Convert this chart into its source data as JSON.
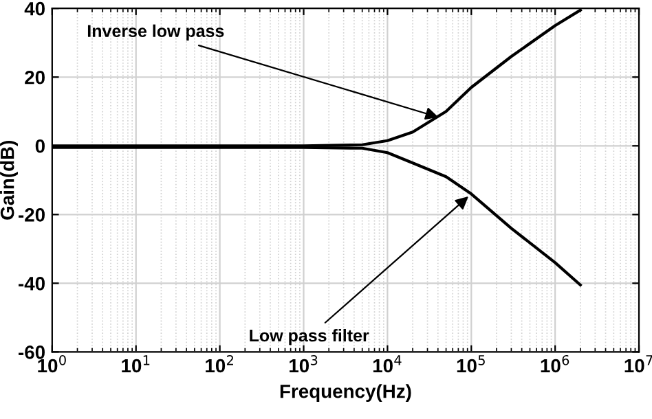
{
  "chart_data": {
    "type": "line",
    "xlabel": "Frequency(Hz)",
    "ylabel": "Gain(dB)",
    "log": "x",
    "xlim": [
      1,
      10000000
    ],
    "ylim": [
      -60,
      40
    ],
    "xticks": [
      {
        "value": 1,
        "label": "10$^{0}$"
      },
      {
        "value": 10,
        "label": "10$^{1}$"
      },
      {
        "value": 100,
        "label": "10$^{2}$"
      },
      {
        "value": 1000,
        "label": "10$^{3}$"
      },
      {
        "value": 10000,
        "label": "10$^{4}$"
      },
      {
        "value": 100000,
        "label": "10$^{5}$"
      },
      {
        "value": 1000000,
        "label": "10$^{6}$"
      },
      {
        "value": 10000000,
        "label": "10$^{7}$"
      }
    ],
    "yticks": [
      -60,
      -40,
      -20,
      0,
      20,
      40
    ],
    "grid": true,
    "marker": "none",
    "line_style": "solid",
    "series": [
      {
        "color": "#000000",
        "x": [
          1,
          1000,
          5000,
          10000,
          20000,
          50000,
          100000,
          300000,
          1000000,
          2000000
        ],
        "values": [
          0,
          0,
          0.3,
          1.5,
          4,
          10,
          17,
          26,
          35,
          39.5
        ]
      },
      {
        "color": "#000000",
        "x": [
          1,
          1000,
          5000,
          10000,
          20000,
          50000,
          100000,
          300000,
          1000000,
          2000000
        ],
        "values": [
          -0.5,
          -0.5,
          -0.7,
          -2,
          -5,
          -9,
          -14,
          -24,
          -34,
          -40.5
        ]
      }
    ],
    "annotations": [
      {
        "text": "Inverse low pass",
        "x": 45000,
        "y": 8
      },
      {
        "text": "Low pass filter",
        "x": 100000,
        "y": -14
      }
    ]
  }
}
